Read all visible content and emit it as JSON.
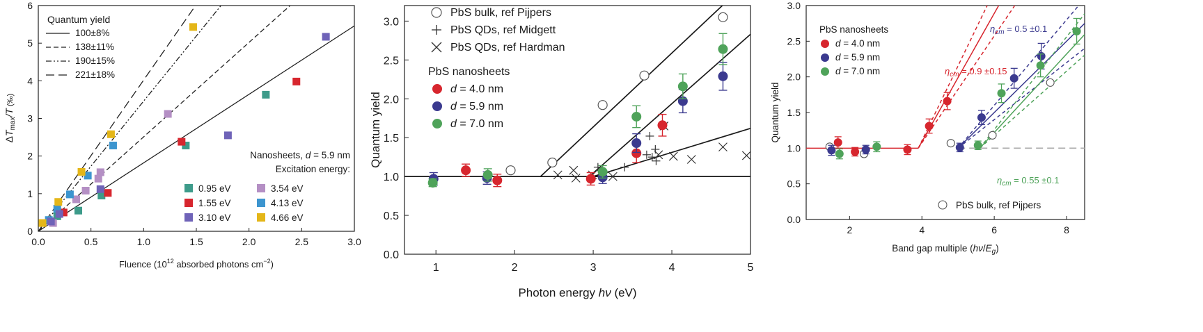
{
  "chart_data": [
    {
      "type": "scatter",
      "panel": "left",
      "xlabel": "Fluence (10^12 absorbed photons cm^-2)",
      "xlabel_main": "Fluence (10",
      "xlabel_sup1": "12",
      "xlabel_mid": " absorbed photons cm",
      "xlabel_sup2": "−2",
      "xlabel_end": ")",
      "ylabel": "ΔTmax/T (‰)",
      "ylabel_delta": "Δ",
      "ylabel_T": "T",
      "ylabel_max": "max",
      "ylabel_slashT": "/T",
      "ylabel_unit": " (‰)",
      "xlim": [
        0,
        3.0
      ],
      "ylim": [
        0,
        6
      ],
      "xticks": [
        "0.0",
        "0.5",
        "1.0",
        "1.5",
        "2.0",
        "2.5",
        "3.0"
      ],
      "yticks": [
        "0",
        "1",
        "2",
        "3",
        "4",
        "5",
        "6"
      ],
      "legend_lines_title": "Quantum yield",
      "legend_lines": [
        {
          "label": "100±8%",
          "num": "100",
          "err": "±8%",
          "slope": 1.82,
          "dash": "solid"
        },
        {
          "label": "138±11%",
          "num": "138",
          "err": "±11%",
          "slope": 2.51,
          "dash": "dashed"
        },
        {
          "label": "190±15%",
          "num": "190",
          "err": "±15%",
          "slope": 3.46,
          "dash": "dashdotdot"
        },
        {
          "label": "221±18%",
          "num": "221",
          "err": "±18%",
          "slope": 4.02,
          "dash": "longdash"
        }
      ],
      "legend_title1": "Nanosheets, d = 5.9 nm",
      "legend_title1_a": "Nanosheets, ",
      "legend_title1_d": "d",
      "legend_title1_b": " = 5.9 nm",
      "legend_title2": "Excitation energy:",
      "series": [
        {
          "name": "0.95 eV",
          "color": "#3d9b8a",
          "points": [
            [
              0.18,
              0.4
            ],
            [
              0.38,
              0.55
            ],
            [
              0.6,
              0.95
            ],
            [
              1.4,
              2.28
            ],
            [
              2.16,
              3.63
            ]
          ]
        },
        {
          "name": "3.54 eV",
          "color": "#b48fc4",
          "points": [
            [
              0.14,
              0.22
            ],
            [
              0.36,
              0.85
            ],
            [
              0.45,
              1.08
            ],
            [
              0.57,
              1.4
            ],
            [
              0.59,
              1.57
            ],
            [
              1.23,
              3.12
            ]
          ]
        },
        {
          "name": "1.55 eV",
          "color": "#d7262e",
          "points": [
            [
              0.24,
              0.5
            ],
            [
              0.66,
              1.02
            ],
            [
              1.36,
              2.38
            ],
            [
              2.45,
              3.98
            ]
          ]
        },
        {
          "name": "4.13 eV",
          "color": "#3c95cf",
          "points": [
            [
              0.1,
              0.3
            ],
            [
              0.18,
              0.6
            ],
            [
              0.3,
              0.98
            ],
            [
              0.47,
              1.48
            ],
            [
              0.71,
              2.28
            ]
          ]
        },
        {
          "name": "3.10 eV",
          "color": "#6f63b8",
          "points": [
            [
              0.12,
              0.26
            ],
            [
              0.2,
              0.46
            ],
            [
              0.59,
              1.12
            ],
            [
              1.8,
              2.55
            ],
            [
              2.73,
              5.17
            ]
          ]
        },
        {
          "name": "4.66 eV",
          "color": "#e4b618",
          "points": [
            [
              0.04,
              0.22
            ],
            [
              0.19,
              0.78
            ],
            [
              0.41,
              1.58
            ],
            [
              0.69,
              2.58
            ],
            [
              1.47,
              5.43
            ]
          ]
        }
      ]
    },
    {
      "type": "scatter",
      "panel": "middle",
      "xlabel": "Photon energy hν (eV)",
      "xlabel_a": "Photon energy ",
      "xlabel_h": "hν",
      "xlabel_b": " (eV)",
      "ylabel": "Quantum yield",
      "xlim": [
        0.6,
        5
      ],
      "ylim": [
        0,
        3.2
      ],
      "xticks": [
        "1",
        "2",
        "3",
        "4",
        "5"
      ],
      "yticks": [
        "0.0",
        "0.5",
        "1.0",
        "1.5",
        "2.0",
        "2.5",
        "3.0"
      ],
      "legend": [
        {
          "name": "PbS bulk, ref Pijpers",
          "marker": "open-circle"
        },
        {
          "name": "PbS QDs, ref Midgett",
          "marker": "plus"
        },
        {
          "name": "PbS QDs, ref Hardman",
          "marker": "cross"
        }
      ],
      "legend_group_title": "PbS nanosheets",
      "lines": [
        {
          "points": [
            [
              0.6,
              1.0
            ],
            [
              5.0,
              1.0
            ]
          ]
        },
        {
          "points": [
            [
              2.33,
              1.0
            ],
            [
              4.8,
              3.35
            ]
          ]
        },
        {
          "points": [
            [
              2.95,
              1.0
            ],
            [
              5.0,
              2.83
            ]
          ]
        },
        {
          "points": [
            [
              3.0,
              1.0
            ],
            [
              5.0,
              1.62
            ]
          ]
        }
      ],
      "pijpers": [
        [
          1.95,
          1.08
        ],
        [
          2.48,
          1.18
        ],
        [
          3.12,
          1.92
        ],
        [
          3.65,
          2.3
        ],
        [
          4.65,
          3.05
        ]
      ],
      "midgett": [
        [
          3.06,
          1.12
        ],
        [
          3.1,
          1.08
        ],
        [
          3.14,
          1.05
        ],
        [
          3.4,
          1.12
        ],
        [
          3.68,
          1.28
        ],
        [
          3.72,
          1.52
        ],
        [
          3.75,
          1.25
        ],
        [
          3.79,
          1.35
        ],
        [
          3.8,
          1.2
        ]
      ],
      "hardman": [
        [
          2.55,
          1.02
        ],
        [
          2.75,
          1.08
        ],
        [
          2.78,
          0.98
        ],
        [
          2.99,
          1.02
        ],
        [
          3.25,
          1.0
        ],
        [
          3.83,
          1.28
        ],
        [
          3.9,
          1.65
        ],
        [
          4.02,
          1.26
        ],
        [
          4.25,
          1.22
        ],
        [
          4.65,
          1.38
        ],
        [
          4.95,
          1.27
        ]
      ],
      "series": [
        {
          "name": "d = 4.0 nm",
          "d_label": "d",
          "value_label": " = 4.0 nm",
          "color": "#d7262e",
          "points": [
            [
              1.38,
              1.08,
              0.08
            ],
            [
              1.78,
              0.95,
              0.08
            ],
            [
              2.97,
              0.97,
              0.08
            ],
            [
              3.55,
              1.3,
              0.12
            ],
            [
              3.88,
              1.66,
              0.14
            ]
          ]
        },
        {
          "name": "d = 5.9 nm",
          "d_label": "d",
          "value_label": " = 5.9 nm",
          "color": "#3b3a8f",
          "points": [
            [
              0.97,
              0.97,
              0.08
            ],
            [
              1.65,
              0.98,
              0.08
            ],
            [
              3.12,
              0.99,
              0.08
            ],
            [
              3.55,
              1.43,
              0.12
            ],
            [
              4.14,
              1.97,
              0.15
            ],
            [
              4.65,
              2.29,
              0.18
            ]
          ]
        },
        {
          "name": "d = 7.0 nm",
          "d_label": "d",
          "value_label": " = 7.0 nm",
          "color": "#4fa35a",
          "points": [
            [
              0.96,
              0.92,
              0.05
            ],
            [
              1.66,
              1.02,
              0.08
            ],
            [
              3.12,
              1.06,
              0.08
            ],
            [
              3.55,
              1.77,
              0.14
            ],
            [
              4.14,
              2.16,
              0.16
            ],
            [
              4.65,
              2.64,
              0.2
            ]
          ]
        }
      ]
    },
    {
      "type": "scatter",
      "panel": "right",
      "xlabel": "Band gap multiple (hν/Eg)",
      "xlabel_a": "Band gap multiple (",
      "xlabel_h": "hν",
      "xlabel_slash": "/",
      "xlabel_E": "E",
      "xlabel_g": "g",
      "xlabel_b": ")",
      "ylabel": "Quantum yield",
      "xlim": [
        0.8,
        8.5
      ],
      "ylim": [
        0,
        3.0
      ],
      "xticks": [
        "2",
        "4",
        "6",
        "8"
      ],
      "yticks": [
        "0.0",
        "0.5",
        "1.0",
        "1.5",
        "2.0",
        "2.5",
        "3.0"
      ],
      "legend_group_title": "PbS nanosheets",
      "legend_bulk": "PbS bulk, ref Pijpers",
      "annotations": [
        {
          "text": "ηcm = 0.5 ±0.1",
          "eta": "η",
          "sub": "cm",
          "rest": " = 0.5 ±0.1",
          "color": "#3b3a8f"
        },
        {
          "text": "ηcm = 0.9 ±0.15",
          "eta": "η",
          "sub": "cm",
          "rest": " = 0.9 ±0.15",
          "color": "#d7262e"
        },
        {
          "text": "ηcm = 0.55 ±0.1",
          "eta": "η",
          "sub": "cm",
          "rest": " = 0.55 ±0.1",
          "color": "#4fa35a"
        }
      ],
      "bulk": [
        [
          1.45,
          1.02
        ],
        [
          2.4,
          0.92
        ],
        [
          4.8,
          1.07
        ],
        [
          5.95,
          1.18
        ],
        [
          7.55,
          1.92
        ]
      ],
      "fits": [
        {
          "color": "#d7262e",
          "x0": 3.9,
          "slope": 0.9,
          "band": 0.15
        },
        {
          "color": "#3b3a8f",
          "x0": 5.0,
          "slope": 0.5,
          "band": 0.1
        },
        {
          "color": "#4fa35a",
          "x0": 5.6,
          "slope": 0.55,
          "band": 0.1
        }
      ],
      "series": [
        {
          "name": "d = 4.0 nm",
          "d_label": "d",
          "value_label": " = 4.0 nm",
          "color": "#d7262e",
          "points": [
            [
              1.68,
              1.08,
              0.08
            ],
            [
              2.15,
              0.95,
              0.06
            ],
            [
              3.6,
              0.98,
              0.07
            ],
            [
              4.2,
              1.31,
              0.1
            ],
            [
              4.7,
              1.66,
              0.12
            ]
          ]
        },
        {
          "name": "d = 5.9 nm",
          "d_label": "d",
          "value_label": " = 5.9 nm",
          "color": "#3b3a8f",
          "points": [
            [
              1.5,
              0.97,
              0.07
            ],
            [
              2.45,
              0.98,
              0.06
            ],
            [
              5.05,
              1.01,
              0.06
            ],
            [
              5.65,
              1.43,
              0.1
            ],
            [
              6.55,
              1.98,
              0.14
            ],
            [
              7.3,
              2.29,
              0.18
            ]
          ]
        },
        {
          "name": "d = 7.0 nm",
          "d_label": "d",
          "value_label": " = 7.0 nm",
          "color": "#4fa35a",
          "points": [
            [
              1.72,
              0.92,
              0.07
            ],
            [
              2.75,
              1.02,
              0.07
            ],
            [
              5.55,
              1.04,
              0.06
            ],
            [
              6.2,
              1.77,
              0.13
            ],
            [
              7.28,
              2.16,
              0.16
            ],
            [
              8.28,
              2.64,
              0.18
            ]
          ]
        }
      ]
    }
  ]
}
